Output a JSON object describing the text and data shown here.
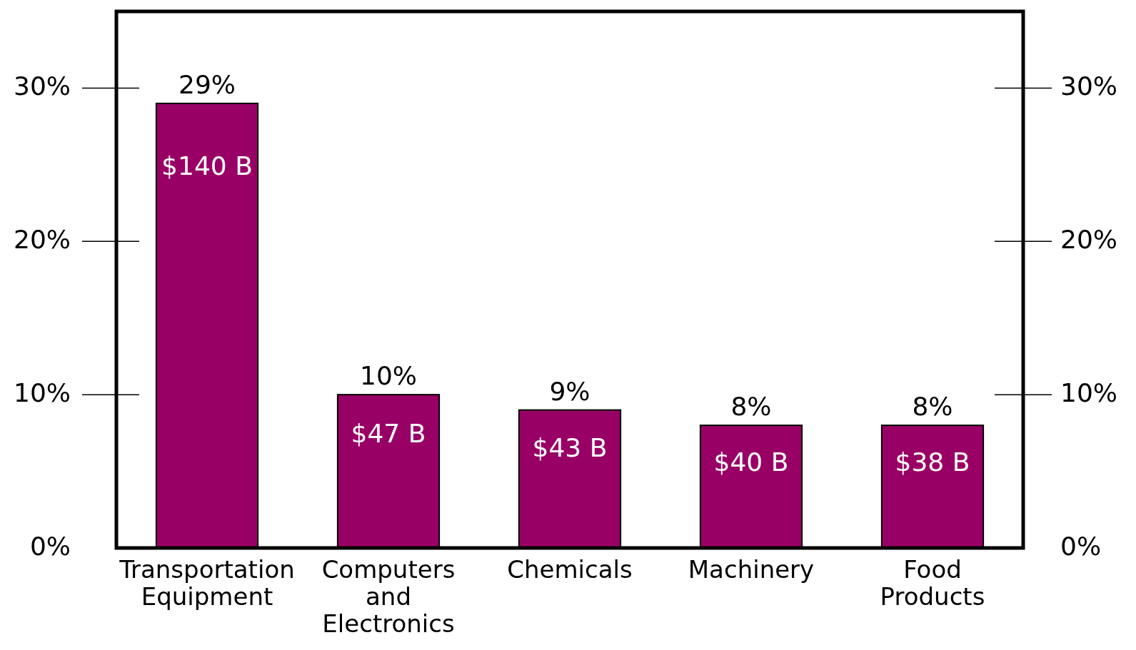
{
  "chart_data": {
    "type": "bar",
    "categories": [
      "Transportation Equipment",
      "Computers and Electronics",
      "Chemicals",
      "Machinery",
      "Food Products"
    ],
    "values": [
      29,
      10,
      9,
      8,
      8
    ],
    "color": "#990066",
    "value_labels": [
      "29%",
      "10%",
      "9%",
      "8%",
      "8%"
    ],
    "ylim": [
      0,
      35
    ],
    "yticks": [
      {
        "value": 0,
        "label": "0%"
      },
      {
        "value": 10,
        "label": "10%"
      },
      {
        "value": 20,
        "label": "20%"
      },
      {
        "value": 30,
        "label": "30%"
      }
    ],
    "y2lim": [
      0,
      35
    ],
    "y2ticks": [
      {
        "value": 0,
        "label": "0%"
      },
      {
        "value": 10,
        "label": "10%"
      },
      {
        "value": 20,
        "label": "20%"
      },
      {
        "value": 30,
        "label": "30%"
      }
    ],
    "annotations": [
      "$140 B",
      "$47 B",
      "$43 B",
      "$40 B",
      "$38 B"
    ],
    "grid": false
  }
}
